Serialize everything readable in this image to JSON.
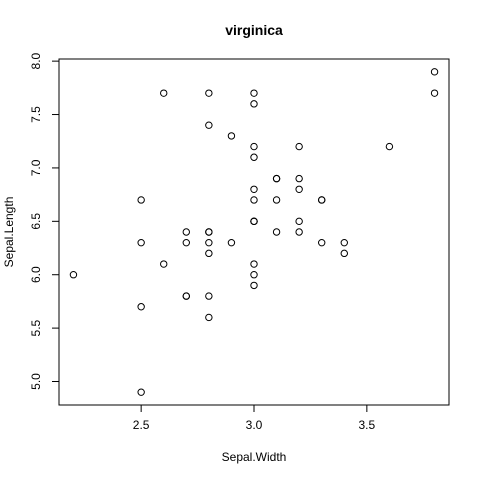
{
  "chart_data": {
    "type": "scatter",
    "title": "virginica",
    "xlabel": "Sepal.Width",
    "ylabel": "Sepal.Length",
    "xlim": [
      2.2,
      3.8
    ],
    "ylim": [
      4.9,
      7.9
    ],
    "xticks": [
      "2.5",
      "3.0",
      "3.5"
    ],
    "yticks": [
      "5.0",
      "5.5",
      "6.0",
      "6.5",
      "7.0",
      "7.5",
      "8.0"
    ],
    "grid": false,
    "points": [
      {
        "x": 3.3,
        "y": 6.3
      },
      {
        "x": 2.7,
        "y": 5.8
      },
      {
        "x": 3.0,
        "y": 7.1
      },
      {
        "x": 2.9,
        "y": 6.3
      },
      {
        "x": 3.0,
        "y": 6.5
      },
      {
        "x": 3.0,
        "y": 7.6
      },
      {
        "x": 2.5,
        "y": 4.9
      },
      {
        "x": 2.9,
        "y": 7.3
      },
      {
        "x": 2.5,
        "y": 6.7
      },
      {
        "x": 3.6,
        "y": 7.2
      },
      {
        "x": 3.2,
        "y": 6.5
      },
      {
        "x": 2.7,
        "y": 6.4
      },
      {
        "x": 3.0,
        "y": 6.8
      },
      {
        "x": 2.5,
        "y": 5.7
      },
      {
        "x": 2.8,
        "y": 5.8
      },
      {
        "x": 3.2,
        "y": 6.4
      },
      {
        "x": 3.0,
        "y": 6.5
      },
      {
        "x": 3.8,
        "y": 7.7
      },
      {
        "x": 2.6,
        "y": 7.7
      },
      {
        "x": 2.2,
        "y": 6.0
      },
      {
        "x": 3.2,
        "y": 6.9
      },
      {
        "x": 2.8,
        "y": 5.6
      },
      {
        "x": 2.8,
        "y": 7.7
      },
      {
        "x": 2.7,
        "y": 6.3
      },
      {
        "x": 3.3,
        "y": 6.7
      },
      {
        "x": 3.2,
        "y": 7.2
      },
      {
        "x": 2.8,
        "y": 6.2
      },
      {
        "x": 3.0,
        "y": 6.1
      },
      {
        "x": 2.8,
        "y": 6.4
      },
      {
        "x": 3.0,
        "y": 7.2
      },
      {
        "x": 2.8,
        "y": 7.4
      },
      {
        "x": 3.8,
        "y": 7.9
      },
      {
        "x": 2.8,
        "y": 6.4
      },
      {
        "x": 2.8,
        "y": 6.3
      },
      {
        "x": 2.6,
        "y": 6.1
      },
      {
        "x": 3.0,
        "y": 7.7
      },
      {
        "x": 3.4,
        "y": 6.3
      },
      {
        "x": 3.1,
        "y": 6.4
      },
      {
        "x": 3.0,
        "y": 6.0
      },
      {
        "x": 3.1,
        "y": 6.9
      },
      {
        "x": 3.1,
        "y": 6.7
      },
      {
        "x": 3.1,
        "y": 6.9
      },
      {
        "x": 2.7,
        "y": 5.8
      },
      {
        "x": 3.2,
        "y": 6.8
      },
      {
        "x": 3.3,
        "y": 6.7
      },
      {
        "x": 3.0,
        "y": 6.7
      },
      {
        "x": 2.5,
        "y": 6.3
      },
      {
        "x": 3.0,
        "y": 6.5
      },
      {
        "x": 3.4,
        "y": 6.2
      },
      {
        "x": 3.0,
        "y": 5.9
      }
    ]
  }
}
